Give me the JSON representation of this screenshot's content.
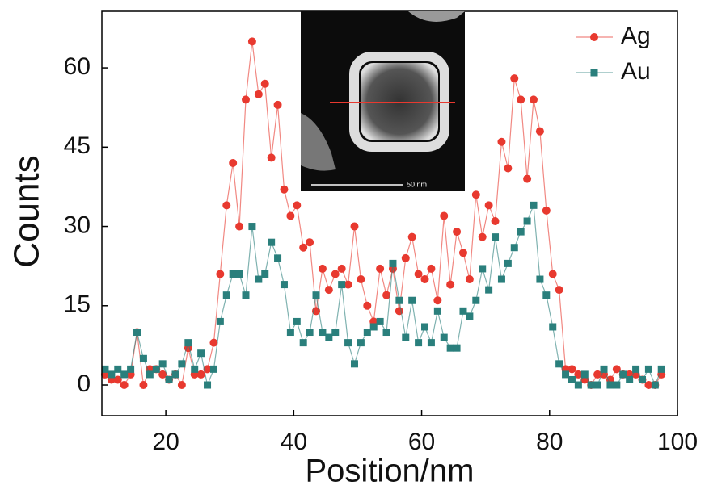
{
  "chart_data": {
    "type": "line",
    "xlabel": "Position/nm",
    "ylabel": "Counts",
    "annotations": [
      "50 nm"
    ],
    "xlim": [
      10,
      100
    ],
    "xticks": [
      20,
      40,
      60,
      80,
      100
    ],
    "ylim": [
      -5.8,
      70.7
    ],
    "yticks": [
      0,
      15,
      30,
      45,
      60
    ],
    "legend": "top-right",
    "x": [
      10.5,
      11.5,
      12.5,
      13.5,
      14.5,
      15.5,
      16.5,
      17.5,
      18.5,
      19.5,
      20.5,
      21.5,
      22.5,
      23.5,
      24.5,
      25.5,
      26.5,
      27.5,
      28.5,
      29.5,
      30.5,
      31.5,
      32.5,
      33.5,
      34.5,
      35.5,
      36.5,
      37.5,
      38.5,
      39.5,
      40.5,
      41.5,
      42.5,
      43.5,
      44.5,
      45.5,
      46.5,
      47.5,
      48.5,
      49.5,
      50.5,
      51.5,
      52.5,
      53.5,
      54.5,
      55.5,
      56.5,
      57.5,
      58.5,
      59.5,
      60.5,
      61.5,
      62.5,
      63.5,
      64.5,
      65.5,
      66.5,
      67.5,
      68.5,
      69.5,
      70.5,
      71.5,
      72.5,
      73.5,
      74.5,
      75.5,
      76.5,
      77.5,
      78.5,
      79.5,
      80.5,
      81.5,
      82.5,
      83.5,
      84.5,
      85.5,
      86.5,
      87.5,
      88.5,
      89.5,
      90.5,
      91.5,
      92.5,
      93.5,
      94.5,
      95.5,
      96.5,
      97.5
    ],
    "series": [
      {
        "name": "Ag",
        "color": "#e8392f",
        "marker": "circle",
        "values": [
          2,
          1,
          1,
          0,
          2,
          10,
          0,
          3,
          3,
          2,
          1,
          2,
          0,
          7,
          2,
          2,
          3,
          8,
          21,
          34,
          42,
          30,
          54,
          65,
          55,
          57,
          43,
          53,
          37,
          32,
          34,
          26,
          27,
          14,
          22,
          18,
          21,
          22,
          19,
          30,
          20,
          15,
          12,
          22,
          17,
          22,
          14,
          24,
          28,
          21,
          20,
          22,
          16,
          32,
          19,
          29,
          25,
          20,
          36,
          28,
          34,
          31,
          46,
          41,
          58,
          54,
          39,
          54,
          48,
          33,
          21,
          18,
          3,
          3,
          2,
          1,
          0,
          2,
          2,
          1,
          3,
          2,
          2,
          2,
          1,
          0,
          0,
          2
        ]
      },
      {
        "name": "Au",
        "color": "#2a7f7c",
        "marker": "square",
        "values": [
          3,
          2,
          3,
          2,
          3,
          10,
          5,
          2,
          3,
          4,
          1,
          2,
          4,
          8,
          3,
          6,
          0,
          3,
          12,
          17,
          21,
          21,
          17,
          30,
          20,
          21,
          27,
          24,
          19,
          10,
          12,
          8,
          10,
          17,
          10,
          9,
          10,
          19,
          8,
          4,
          8,
          10,
          11,
          12,
          10,
          23,
          16,
          9,
          16,
          8,
          11,
          8,
          14,
          9,
          7,
          7,
          14,
          13,
          16,
          22,
          18,
          28,
          20,
          23,
          26,
          29,
          31,
          34,
          20,
          17,
          11,
          4,
          2,
          1,
          0,
          2,
          0,
          0,
          3,
          0,
          0,
          2,
          1,
          3,
          1,
          3,
          0,
          3
        ]
      }
    ]
  }
}
